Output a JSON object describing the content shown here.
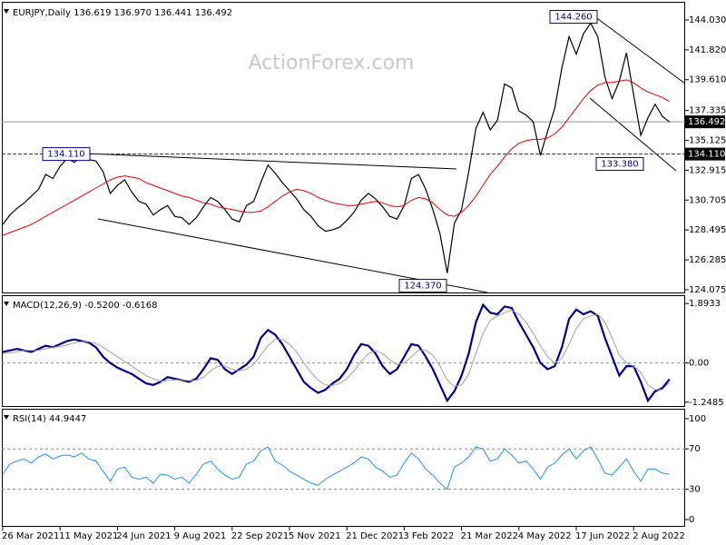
{
  "chart_data": [
    {
      "type": "line",
      "title": "EURJPY,Daily  136.619 136.970 136.441 136.492",
      "watermark": "ActionForex.com",
      "series": [
        {
          "name": "Close",
          "color": "#000000",
          "values": [
            128.9,
            129.6,
            130.1,
            130.5,
            131.0,
            131.5,
            132.6,
            132.3,
            133.2,
            133.8,
            133.5,
            134.0,
            133.7,
            133.6,
            132.8,
            131.2,
            131.8,
            132.2,
            131.3,
            130.6,
            130.4,
            129.6,
            130.0,
            130.3,
            129.5,
            129.4,
            128.9,
            129.4,
            130.2,
            130.9,
            130.6,
            130.0,
            129.3,
            129.1,
            130.3,
            130.6,
            132.0,
            133.3,
            132.7,
            132.0,
            131.4,
            130.8,
            130.0,
            129.5,
            128.8,
            128.4,
            128.5,
            128.7,
            129.2,
            129.8,
            130.7,
            131.2,
            130.8,
            130.2,
            129.5,
            129.3,
            130.3,
            132.3,
            132.6,
            131.5,
            130.0,
            128.2,
            125.3,
            129.0,
            130.0,
            132.8,
            136.0,
            137.2,
            135.9,
            136.6,
            139.3,
            139.0,
            137.3,
            137.0,
            136.5,
            134.0,
            135.8,
            137.5,
            140.5,
            142.8,
            141.5,
            143.0,
            143.8,
            142.8,
            139.8,
            138.2,
            139.5,
            141.6,
            138.5,
            135.5,
            136.8,
            137.8,
            136.9,
            136.492
          ]
        },
        {
          "name": "MA",
          "color": "#e00000",
          "values": [
            128.1,
            128.3,
            128.5,
            128.7,
            128.9,
            129.2,
            129.5,
            129.8,
            130.1,
            130.4,
            130.7,
            131.0,
            131.3,
            131.6,
            131.9,
            132.2,
            132.4,
            132.5,
            132.4,
            132.3,
            132.0,
            131.8,
            131.6,
            131.4,
            131.2,
            131.0,
            130.9,
            130.7,
            130.5,
            130.4,
            130.2,
            130.1,
            130.0,
            129.9,
            129.8,
            129.8,
            129.9,
            130.2,
            130.6,
            131.0,
            131.3,
            131.5,
            131.4,
            131.2,
            130.9,
            130.7,
            130.5,
            130.4,
            130.3,
            130.3,
            130.4,
            130.5,
            130.6,
            130.5,
            130.3,
            130.2,
            130.3,
            130.7,
            130.9,
            130.8,
            130.5,
            130.0,
            129.6,
            129.5,
            129.8,
            130.3,
            131.0,
            131.8,
            132.6,
            133.2,
            133.9,
            134.5,
            134.9,
            135.1,
            135.2,
            135.2,
            135.3,
            135.6,
            136.1,
            136.8,
            137.5,
            138.2,
            138.8,
            139.2,
            139.4,
            139.4,
            139.5,
            139.6,
            139.4,
            139.0,
            138.7,
            138.5,
            138.3,
            138.0
          ]
        }
      ],
      "ylim": [
        123.87,
        145.17
      ],
      "yticks": [
        124.075,
        126.285,
        128.495,
        130.705,
        132.915,
        135.125,
        137.335,
        {
          "value": 139.61,
          "label": "139.610"
        },
        {
          "value": 141.82,
          "label": "141.820"
        },
        {
          "value": 144.03,
          "label": "144.030"
        }
      ],
      "hlines": [
        {
          "value": 136.492,
          "label": "136.492"
        },
        {
          "value": 134.11,
          "label": "134.110"
        }
      ],
      "annotations": [
        {
          "value": 134.11,
          "label": "134.110"
        },
        {
          "value": 144.26,
          "label": "144.260"
        },
        {
          "value": 133.38,
          "label": "133.380"
        },
        {
          "value": 124.37,
          "label": "124.370"
        }
      ],
      "grid": false
    },
    {
      "type": "line",
      "title": "MACD(12,26,9) -0.5200 -0.6168",
      "series": [
        {
          "name": "MACD",
          "color": "#00008b",
          "values": [
            0.35,
            0.4,
            0.45,
            0.4,
            0.35,
            0.45,
            0.55,
            0.5,
            0.6,
            0.7,
            0.75,
            0.7,
            0.65,
            0.5,
            0.2,
            0.0,
            -0.15,
            -0.25,
            -0.35,
            -0.5,
            -0.65,
            -0.7,
            -0.6,
            -0.45,
            -0.5,
            -0.55,
            -0.6,
            -0.5,
            -0.2,
            0.15,
            0.1,
            -0.2,
            -0.35,
            -0.2,
            -0.05,
            0.2,
            0.8,
            1.05,
            0.9,
            0.6,
            0.2,
            -0.2,
            -0.6,
            -0.8,
            -0.95,
            -0.85,
            -0.65,
            -0.5,
            -0.2,
            0.25,
            0.6,
            0.55,
            0.3,
            -0.1,
            -0.35,
            -0.2,
            0.2,
            0.6,
            0.55,
            0.2,
            -0.2,
            -0.7,
            -1.2,
            -0.9,
            -0.4,
            0.3,
            1.3,
            1.85,
            1.6,
            1.55,
            1.8,
            1.75,
            1.3,
            0.9,
            0.5,
            0.0,
            -0.2,
            -0.1,
            0.5,
            1.4,
            1.7,
            1.55,
            1.65,
            1.5,
            0.8,
            0.2,
            -0.4,
            -0.1,
            -0.1,
            -0.6,
            -1.2,
            -0.9,
            -0.8,
            -0.52
          ]
        },
        {
          "name": "Signal",
          "color": "#a0a0a0",
          "values": [
            0.3,
            0.32,
            0.36,
            0.4,
            0.4,
            0.4,
            0.45,
            0.5,
            0.52,
            0.58,
            0.64,
            0.68,
            0.68,
            0.62,
            0.5,
            0.35,
            0.2,
            0.05,
            -0.1,
            -0.25,
            -0.4,
            -0.5,
            -0.58,
            -0.56,
            -0.54,
            -0.54,
            -0.56,
            -0.55,
            -0.45,
            -0.25,
            -0.1,
            -0.1,
            -0.2,
            -0.25,
            -0.2,
            -0.05,
            0.25,
            0.55,
            0.75,
            0.75,
            0.6,
            0.35,
            0.0,
            -0.3,
            -0.55,
            -0.7,
            -0.72,
            -0.65,
            -0.5,
            -0.25,
            0.05,
            0.3,
            0.4,
            0.3,
            0.1,
            -0.05,
            0.0,
            0.2,
            0.4,
            0.4,
            0.25,
            -0.1,
            -0.55,
            -0.75,
            -0.7,
            -0.35,
            0.3,
            0.95,
            1.35,
            1.5,
            1.6,
            1.68,
            1.55,
            1.3,
            0.95,
            0.55,
            0.2,
            0.0,
            0.15,
            0.6,
            1.1,
            1.4,
            1.5,
            1.55,
            1.3,
            0.8,
            0.25,
            0.0,
            -0.1,
            -0.3,
            -0.7,
            -0.85,
            -0.85,
            -0.6168
          ]
        }
      ],
      "ylim": [
        -1.37,
        2.1
      ],
      "yticks": [
        -1.2485,
        {
          "value": 0,
          "label": "0.00"
        },
        1.8933
      ],
      "levels": [
        0
      ]
    },
    {
      "type": "line",
      "title": "RSI(14) 44.9447",
      "categories": [
        "26 Mar 2021",
        null,
        null,
        null,
        null,
        null,
        null,
        null,
        "11 May 2021",
        null,
        null,
        null,
        null,
        null,
        null,
        null,
        "24 Jun 2021",
        null,
        null,
        null,
        null,
        null,
        null,
        null,
        "9 Aug 2021",
        null,
        null,
        null,
        null,
        null,
        null,
        null,
        "22 Sep 2021",
        null,
        null,
        null,
        null,
        null,
        null,
        null,
        "5 Nov 2021",
        null,
        null,
        null,
        null,
        null,
        null,
        null,
        "21 Dec 2021",
        null,
        null,
        null,
        null,
        null,
        null,
        null,
        "3 Feb 2022",
        null,
        null,
        null,
        null,
        null,
        null,
        null,
        "21 Mar 2022",
        null,
        null,
        null,
        null,
        null,
        null,
        null,
        "4 May 2022",
        null,
        null,
        null,
        null,
        null,
        null,
        null,
        "17 Jun 2022",
        null,
        null,
        null,
        null,
        null,
        null,
        null,
        "2 Aug 2022",
        null,
        null,
        null,
        null,
        null
      ],
      "series": [
        {
          "name": "RSI",
          "color": "#1e90ff",
          "values": [
            45,
            55,
            58,
            60,
            56,
            62,
            65,
            60,
            63,
            64,
            62,
            66,
            60,
            58,
            48,
            38,
            50,
            52,
            42,
            40,
            42,
            36,
            45,
            44,
            40,
            42,
            36,
            45,
            55,
            58,
            50,
            44,
            40,
            42,
            55,
            58,
            68,
            72,
            58,
            54,
            48,
            44,
            40,
            36,
            34,
            40,
            44,
            48,
            52,
            56,
            62,
            60,
            52,
            48,
            42,
            44,
            56,
            66,
            60,
            50,
            44,
            36,
            30,
            52,
            56,
            62,
            72,
            70,
            58,
            60,
            70,
            64,
            56,
            58,
            50,
            40,
            52,
            56,
            64,
            70,
            60,
            68,
            72,
            60,
            46,
            44,
            52,
            60,
            48,
            38,
            50,
            50,
            46,
            44.9447
          ]
        }
      ],
      "ylim": [
        -5.4,
        108
      ],
      "yticks": [
        0,
        30,
        70,
        100
      ],
      "levels": [
        30,
        70
      ]
    }
  ]
}
